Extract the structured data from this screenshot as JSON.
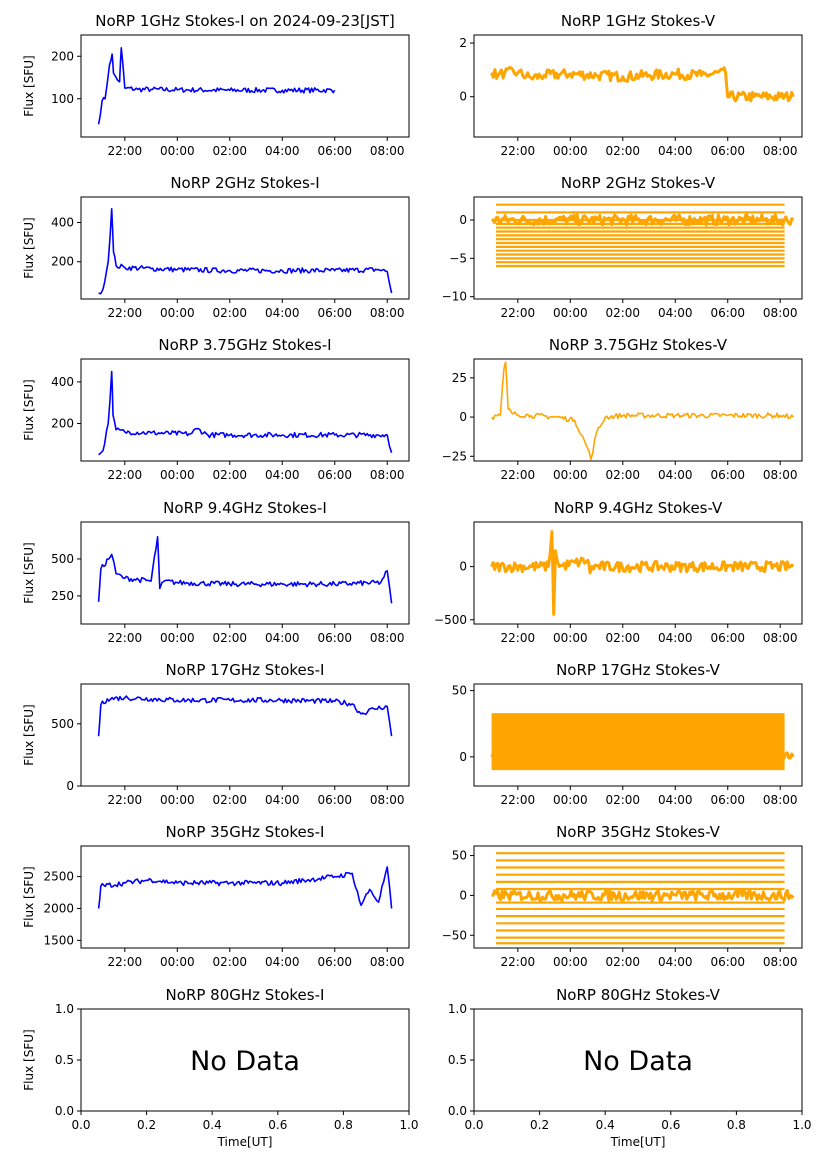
{
  "chart_data": [
    {
      "id": "p1i",
      "type": "line",
      "title": "NoRP 1GHz Stokes-I on 2024-09-23[JST]",
      "ylabel": "Flux [SFU]",
      "xlabel": "",
      "color": "#0000ff",
      "ylim": [
        10,
        250
      ],
      "yticks": [
        100,
        200
      ],
      "xticks": [
        "22:00",
        "00:00",
        "02:00",
        "04:00",
        "06:00",
        "08:00"
      ],
      "series": [
        {
          "x": [
            "21:00",
            "21:08",
            "21:15",
            "21:25",
            "21:31",
            "21:34",
            "21:40",
            "21:48",
            "21:52",
            "22:00",
            "22:30",
            "23:00",
            "00:00",
            "02:00",
            "04:00",
            "06:00"
          ],
          "values": [
            40,
            95,
            100,
            180,
            205,
            160,
            150,
            140,
            220,
            125,
            122,
            122,
            121,
            120,
            120,
            120
          ]
        }
      ],
      "no_data": false
    },
    {
      "id": "p1v",
      "type": "scatter",
      "title": "NoRP 1GHz Stokes-V",
      "ylabel": "",
      "xlabel": "",
      "color": "#ffa500",
      "ylim": [
        -1.5,
        2.3
      ],
      "yticks": [
        0,
        2
      ],
      "xticks": [
        "22:00",
        "00:00",
        "02:00",
        "04:00",
        "06:00",
        "08:00"
      ],
      "series": [
        {
          "x": [
            "21:00",
            "21:15",
            "21:30",
            "22:00",
            "22:30",
            "23:00",
            "00:00",
            "01:00",
            "02:00",
            "03:00",
            "04:00",
            "05:00",
            "05:55",
            "06:00",
            "07:00",
            "08:00",
            "08:30"
          ],
          "values": [
            0.9,
            0.8,
            0.9,
            0.9,
            0.7,
            0.8,
            0.85,
            0.8,
            0.75,
            0.8,
            0.85,
            0.8,
            0.9,
            0,
            0,
            0,
            0
          ]
        }
      ],
      "no_data": false
    },
    {
      "id": "p2i",
      "type": "line",
      "title": "NoRP 2GHz Stokes-I",
      "ylabel": "Flux [SFU]",
      "xlabel": "",
      "color": "#0000ff",
      "ylim": [
        10,
        530
      ],
      "yticks": [
        200,
        400
      ],
      "xticks": [
        "22:00",
        "00:00",
        "02:00",
        "04:00",
        "06:00",
        "08:00"
      ],
      "series": [
        {
          "x": [
            "21:00",
            "21:10",
            "21:22",
            "21:30",
            "21:34",
            "21:40",
            "22:00",
            "23:00",
            "00:00",
            "02:00",
            "04:00",
            "06:00",
            "07:40",
            "08:00",
            "08:10"
          ],
          "values": [
            40,
            60,
            200,
            470,
            250,
            180,
            170,
            165,
            160,
            155,
            155,
            155,
            160,
            150,
            40
          ]
        }
      ],
      "no_data": false
    },
    {
      "id": "p2v",
      "type": "scatter",
      "title": "NoRP 2GHz Stokes-V",
      "ylabel": "",
      "xlabel": "",
      "color": "#ffa500",
      "ylim": [
        -10.3,
        3
      ],
      "yticks": [
        -10,
        -5,
        0
      ],
      "xticks": [
        "22:00",
        "00:00",
        "02:00",
        "04:00",
        "06:00",
        "08:00"
      ],
      "series": [
        {
          "x": [
            "21:00",
            "08:30"
          ],
          "values": [
            0,
            0
          ]
        }
      ],
      "levels": [
        2,
        1,
        0,
        -0.5,
        -1,
        -1.5,
        -2,
        -2.5,
        -3,
        -3.5,
        -4,
        -4.5,
        -5,
        -5.5,
        -6
      ],
      "no_data": false
    },
    {
      "id": "p3i",
      "type": "line",
      "title": "NoRP 3.75GHz Stokes-I",
      "ylabel": "Flux [SFU]",
      "xlabel": "",
      "color": "#0000ff",
      "ylim": [
        20,
        510
      ],
      "yticks": [
        200,
        400
      ],
      "xticks": [
        "22:00",
        "00:00",
        "02:00",
        "04:00",
        "06:00",
        "08:00"
      ],
      "series": [
        {
          "x": [
            "21:00",
            "21:10",
            "21:22",
            "21:30",
            "21:33",
            "21:40",
            "22:00",
            "23:00",
            "00:30",
            "00:45",
            "01:10",
            "02:00",
            "04:00",
            "06:00",
            "08:00",
            "08:10"
          ],
          "values": [
            50,
            70,
            200,
            450,
            240,
            170,
            160,
            155,
            150,
            175,
            145,
            145,
            145,
            145,
            145,
            60
          ]
        }
      ],
      "no_data": false
    },
    {
      "id": "p3v",
      "type": "line",
      "title": "NoRP 3.75GHz Stokes-V",
      "ylabel": "",
      "xlabel": "",
      "color": "#ffa500",
      "ylim": [
        -28,
        37
      ],
      "yticks": [
        -25,
        0,
        25
      ],
      "xticks": [
        "22:00",
        "00:00",
        "02:00",
        "04:00",
        "06:00",
        "08:00"
      ],
      "series": [
        {
          "x": [
            "21:00",
            "21:20",
            "21:28",
            "21:32",
            "21:38",
            "21:50",
            "22:30",
            "23:30",
            "00:10",
            "00:40",
            "00:47",
            "01:00",
            "01:20",
            "02:00",
            "04:00",
            "06:00",
            "08:00",
            "08:30"
          ],
          "values": [
            0,
            1,
            30,
            35,
            5,
            2,
            1,
            0,
            -2,
            -20,
            -27,
            -10,
            0,
            1,
            1,
            1,
            1,
            0
          ]
        }
      ],
      "no_data": false
    },
    {
      "id": "p4i",
      "type": "line",
      "title": "NoRP 9.4GHz Stokes-I",
      "ylabel": "Flux [SFU]",
      "xlabel": "",
      "color": "#0000ff",
      "ylim": [
        60,
        750
      ],
      "yticks": [
        250,
        500
      ],
      "xticks": [
        "22:00",
        "00:00",
        "02:00",
        "04:00",
        "06:00",
        "08:00"
      ],
      "series": [
        {
          "x": [
            "21:00",
            "21:05",
            "21:30",
            "21:40",
            "22:00",
            "23:00",
            "23:15",
            "23:20",
            "23:30",
            "00:00",
            "02:00",
            "04:00",
            "06:00",
            "07:45",
            "08:00",
            "08:10"
          ],
          "values": [
            210,
            430,
            530,
            400,
            370,
            350,
            650,
            300,
            350,
            340,
            330,
            330,
            330,
            340,
            420,
            200
          ]
        }
      ],
      "no_data": false
    },
    {
      "id": "p4v",
      "type": "scatter",
      "title": "NoRP 9.4GHz Stokes-V",
      "ylabel": "",
      "xlabel": "",
      "color": "#ffa500",
      "ylim": [
        -540,
        420
      ],
      "yticks": [
        -500,
        0
      ],
      "xticks": [
        "22:00",
        "00:00",
        "02:00",
        "04:00",
        "06:00",
        "08:00"
      ],
      "series": [
        {
          "x": [
            "21:00",
            "23:10",
            "23:18",
            "23:22",
            "23:26",
            "23:35",
            "00:40",
            "00:45",
            "00:50",
            "08:30"
          ],
          "values": [
            0,
            0,
            330,
            -450,
            150,
            0,
            60,
            -60,
            0,
            0
          ]
        }
      ],
      "no_data": false
    },
    {
      "id": "p5i",
      "type": "line",
      "title": "NoRP 17GHz Stokes-I",
      "ylabel": "Flux [SFU]",
      "xlabel": "",
      "color": "#0000ff",
      "ylim": [
        0,
        820
      ],
      "yticks": [
        0,
        500
      ],
      "xticks": [
        "22:00",
        "00:00",
        "02:00",
        "04:00",
        "06:00",
        "08:00"
      ],
      "series": [
        {
          "x": [
            "21:00",
            "21:05",
            "21:20",
            "22:00",
            "23:00",
            "00:00",
            "02:00",
            "04:00",
            "06:00",
            "06:40",
            "07:00",
            "07:30",
            "08:00",
            "08:10"
          ],
          "values": [
            400,
            650,
            700,
            710,
            700,
            690,
            690,
            690,
            680,
            660,
            580,
            620,
            640,
            400
          ]
        }
      ],
      "no_data": false
    },
    {
      "id": "p5v",
      "type": "scatter",
      "title": "NoRP 17GHz Stokes-V",
      "ylabel": "",
      "xlabel": "",
      "color": "#ffa500",
      "ylim": [
        -22,
        55
      ],
      "yticks": [
        0,
        50
      ],
      "xticks": [
        "22:00",
        "00:00",
        "02:00",
        "04:00",
        "06:00",
        "08:00"
      ],
      "series": [
        {
          "x": [
            "21:00",
            "08:30"
          ],
          "values": [
            0,
            0
          ]
        }
      ],
      "band": [
        -10,
        33
      ],
      "no_data": false
    },
    {
      "id": "p6i",
      "type": "line",
      "title": "NoRP 35GHz Stokes-I",
      "ylabel": "Flux [SFU]",
      "xlabel": "",
      "color": "#0000ff",
      "ylim": [
        1380,
        2980
      ],
      "yticks": [
        1500,
        2000,
        2500
      ],
      "xticks": [
        "22:00",
        "00:00",
        "02:00",
        "04:00",
        "06:00",
        "08:00"
      ],
      "series": [
        {
          "x": [
            "21:00",
            "21:05",
            "22:00",
            "23:00",
            "00:00",
            "02:00",
            "04:00",
            "06:00",
            "06:40",
            "07:00",
            "07:20",
            "07:40",
            "08:00",
            "08:10"
          ],
          "values": [
            2000,
            2350,
            2400,
            2450,
            2400,
            2400,
            2400,
            2500,
            2550,
            2050,
            2300,
            2100,
            2650,
            2000
          ]
        }
      ],
      "no_data": false
    },
    {
      "id": "p6v",
      "type": "scatter",
      "title": "NoRP 35GHz Stokes-V",
      "ylabel": "",
      "xlabel": "",
      "color": "#ffa500",
      "ylim": [
        -66,
        62
      ],
      "yticks": [
        -50,
        0,
        50
      ],
      "xticks": [
        "22:00",
        "00:00",
        "02:00",
        "04:00",
        "06:00",
        "08:00"
      ],
      "series": [
        {
          "x": [
            "21:00",
            "08:30"
          ],
          "values": [
            0,
            0
          ]
        }
      ],
      "levels": [
        53,
        44,
        35,
        26,
        17,
        8,
        -9,
        -17,
        -26,
        -35,
        -44,
        -53,
        -60
      ],
      "no_data": false
    },
    {
      "id": "p7i",
      "type": "line",
      "title": "NoRP 80GHz Stokes-I",
      "ylabel": "Flux [SFU]",
      "xlabel": "Time[UT]",
      "color": "#0000ff",
      "ylim": [
        0,
        1
      ],
      "yticks": [
        "0.0",
        "0.5",
        "1.0"
      ],
      "xticks": [
        "0.0",
        "0.2",
        "0.4",
        "0.6",
        "0.8",
        "1.0"
      ],
      "series": [],
      "no_data": true,
      "no_data_text": "No Data"
    },
    {
      "id": "p7v",
      "type": "line",
      "title": "NoRP 80GHz Stokes-V",
      "ylabel": "",
      "xlabel": "Time[UT]",
      "color": "#ffa500",
      "ylim": [
        0,
        1
      ],
      "yticks": [
        "0.0",
        "0.5",
        "1.0"
      ],
      "xticks": [
        "0.0",
        "0.2",
        "0.4",
        "0.6",
        "0.8",
        "1.0"
      ],
      "series": [],
      "no_data": true,
      "no_data_text": "No Data"
    }
  ]
}
